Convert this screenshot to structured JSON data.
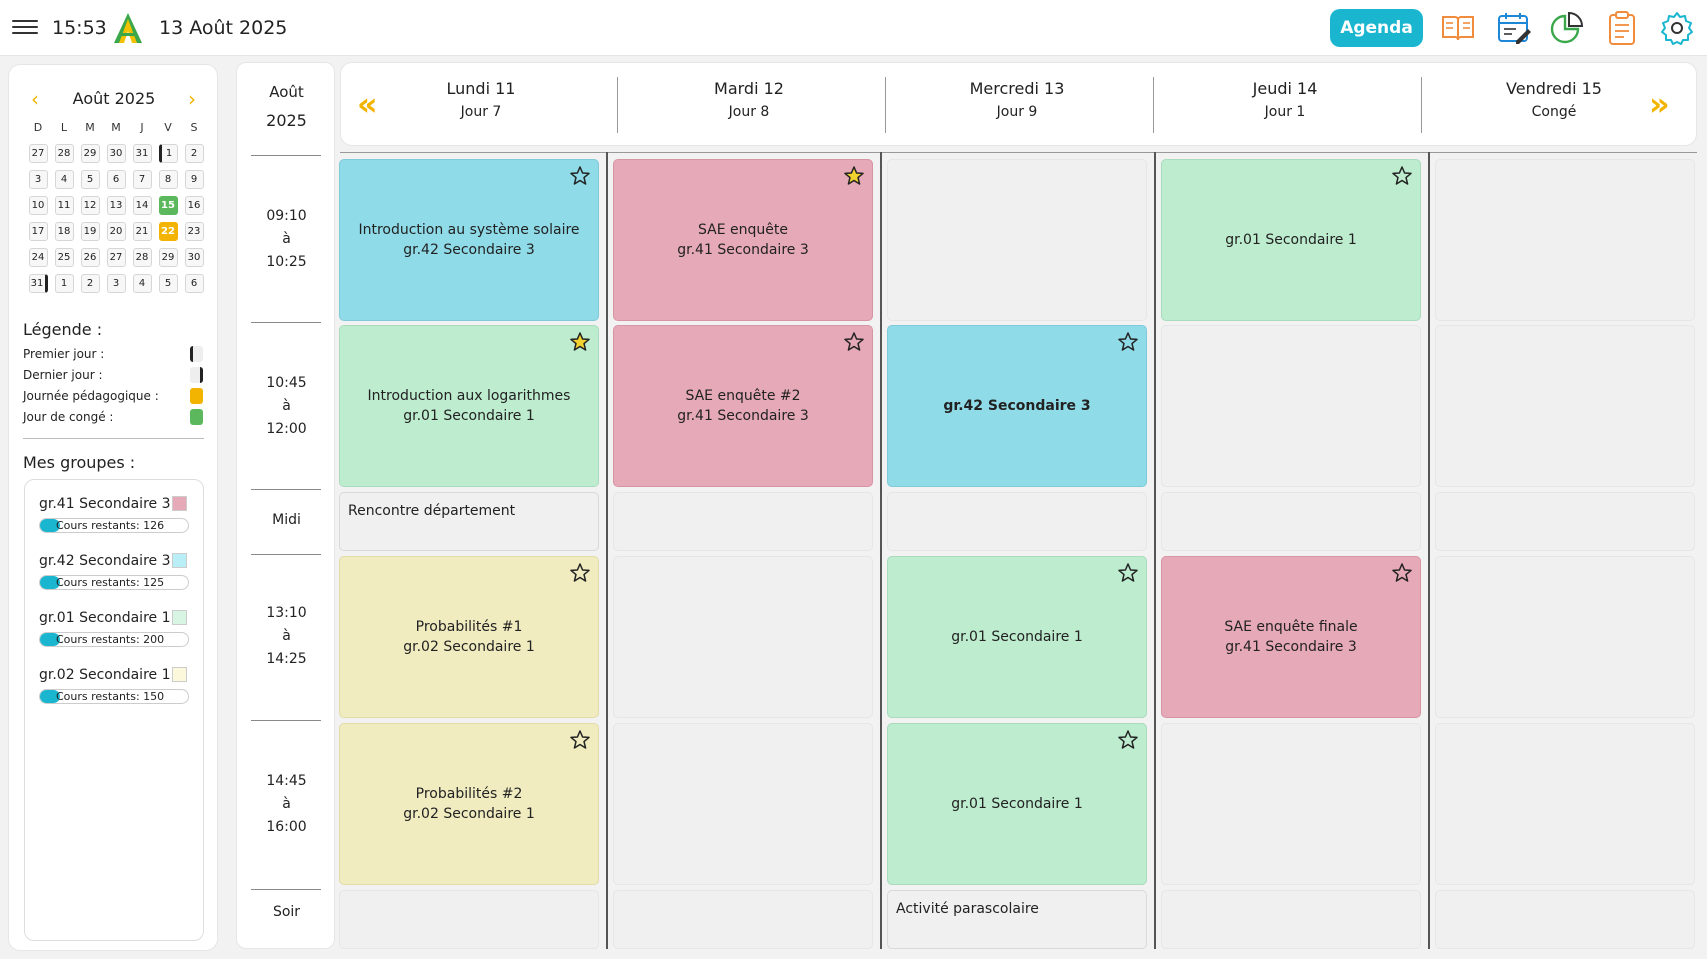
{
  "topbar": {
    "time": "15:53",
    "date": "13 Août 2025",
    "agenda_label": "Agenda",
    "icons": [
      "menu-icon",
      "logo",
      "book-icon",
      "calendar-edit-icon",
      "pie-chart-icon",
      "clipboard-icon",
      "gear-icon"
    ]
  },
  "calendar": {
    "title": "Août 2025",
    "dow": [
      "D",
      "L",
      "M",
      "M",
      "J",
      "V",
      "S"
    ],
    "weeks": [
      [
        "27",
        "28",
        "29",
        "30",
        "31",
        "1",
        "2"
      ],
      [
        "3",
        "4",
        "5",
        "6",
        "7",
        "8",
        "9"
      ],
      [
        "10",
        "11",
        "12",
        "13",
        "14",
        "15",
        "16"
      ],
      [
        "17",
        "18",
        "19",
        "20",
        "21",
        "22",
        "23"
      ],
      [
        "24",
        "25",
        "26",
        "27",
        "28",
        "29",
        "30"
      ],
      [
        "31",
        "1",
        "2",
        "3",
        "4",
        "5",
        "6"
      ]
    ],
    "highlights": {
      "holiday": "15",
      "pedagogical": "22",
      "first_day": "1",
      "last_day": "31"
    }
  },
  "legend": {
    "title": "Légende :",
    "items": [
      "Premier jour :",
      "Dernier jour :",
      "Journée pédagogique :",
      "Jour de congé :"
    ]
  },
  "groups": {
    "title": "Mes groupes :",
    "items": [
      {
        "name": "gr.41 Secondaire 3",
        "remaining": "Cours restants: 126",
        "color": "#e6a9b7"
      },
      {
        "name": "gr.42 Secondaire 3",
        "remaining": "Cours restants: 125",
        "color": "#8fdbe8"
      },
      {
        "name": "gr.01 Secondaire 1",
        "remaining": "Cours restants: 200",
        "color": "#bdeccf"
      },
      {
        "name": "gr.02 Secondaire 1",
        "remaining": "Cours restants: 150",
        "color": "#f0ecc0"
      }
    ]
  },
  "timecol": {
    "month": "Août",
    "year": "2025",
    "slots": [
      {
        "start": "09:10",
        "sep": "à",
        "end": "10:25"
      },
      {
        "start": "10:45",
        "sep": "à",
        "end": "12:00"
      },
      {
        "label": "Midi"
      },
      {
        "start": "13:10",
        "sep": "à",
        "end": "14:25"
      },
      {
        "start": "14:45",
        "sep": "à",
        "end": "16:00"
      },
      {
        "label": "Soir"
      }
    ]
  },
  "days": [
    {
      "name": "Lundi 11",
      "sub": "Jour 7"
    },
    {
      "name": "Mardi 12",
      "sub": "Jour 8"
    },
    {
      "name": "Mercredi 13",
      "sub": "Jour 9"
    },
    {
      "name": "Jeudi 14",
      "sub": "Jour 1"
    },
    {
      "name": "Vendredi 15",
      "sub": "Congé"
    }
  ],
  "slots": {
    "mon": {
      "p1": {
        "title": "Introduction au système solaire",
        "group": "gr.42 Secondaire 3"
      },
      "p2": {
        "title": "Introduction aux logarithmes",
        "group": "gr.01 Secondaire 1"
      },
      "noon": "Rencontre département",
      "p3": {
        "title": "Probabilités #1",
        "group": "gr.02 Secondaire 1"
      },
      "p4": {
        "title": "Probabilités #2",
        "group": "gr.02 Secondaire 1"
      }
    },
    "tue": {
      "p1": {
        "title": "SAE enquête",
        "group": "gr.41 Secondaire 3"
      },
      "p2": {
        "title": "SAE enquête #2",
        "group": "gr.41 Secondaire 3"
      }
    },
    "wed": {
      "p2": {
        "group": "gr.42 Secondaire 3"
      },
      "p3": {
        "group": "gr.01 Secondaire 1"
      },
      "p4": {
        "group": "gr.01 Secondaire 1"
      },
      "evening": "Activité parascolaire"
    },
    "thu": {
      "p1": {
        "group": "gr.01 Secondaire 1"
      },
      "p3": {
        "title": "SAE enquête finale",
        "group": "gr.41 Secondaire 3"
      }
    }
  },
  "colors": {
    "accent": "#1ab6cf",
    "arrow": "#f2b400",
    "holiday": "#5cb85c",
    "pedagogical": "#f2b400"
  }
}
